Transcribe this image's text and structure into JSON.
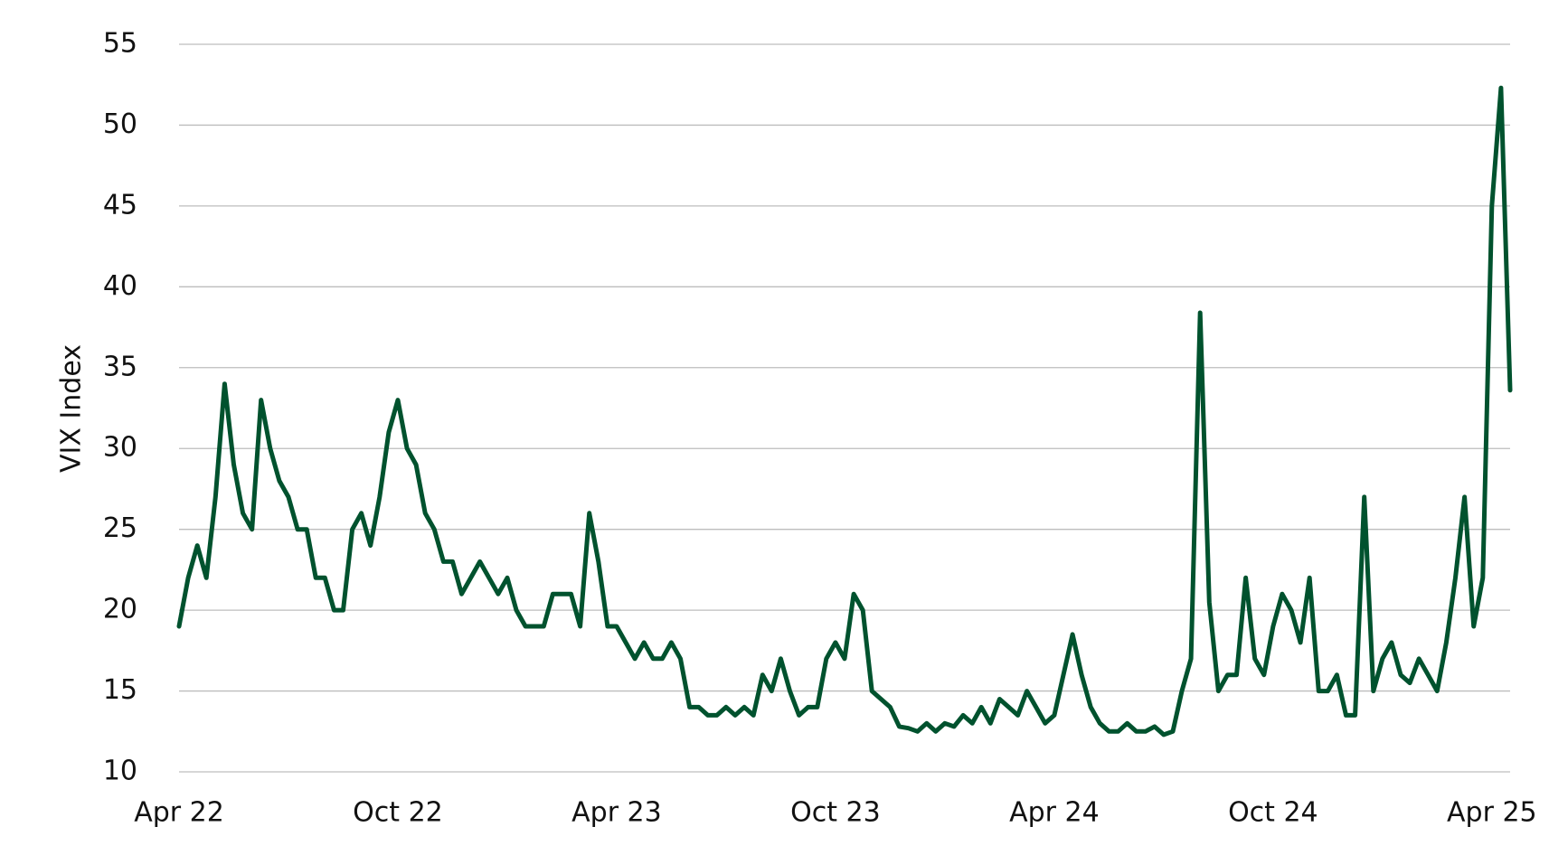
{
  "chart_data": {
    "type": "line",
    "y_label": "VIX Index",
    "categories": [
      "Apr 22",
      null,
      null,
      null,
      null,
      null,
      null,
      null,
      null,
      null,
      null,
      null,
      null,
      null,
      null,
      null,
      null,
      null,
      null,
      null,
      null,
      null,
      null,
      null,
      "Oct 22",
      null,
      null,
      null,
      null,
      null,
      null,
      null,
      null,
      null,
      null,
      null,
      null,
      null,
      null,
      null,
      null,
      null,
      null,
      null,
      null,
      null,
      null,
      null,
      "Apr 23",
      null,
      null,
      null,
      null,
      null,
      null,
      null,
      null,
      null,
      null,
      null,
      null,
      null,
      null,
      null,
      null,
      null,
      null,
      null,
      null,
      null,
      null,
      null,
      "Oct 23",
      null,
      null,
      null,
      null,
      null,
      null,
      null,
      null,
      null,
      null,
      null,
      null,
      null,
      null,
      null,
      null,
      null,
      null,
      null,
      null,
      null,
      null,
      null,
      "Apr 24",
      null,
      null,
      null,
      null,
      null,
      null,
      null,
      null,
      null,
      null,
      null,
      null,
      null,
      null,
      null,
      null,
      null,
      null,
      null,
      null,
      null,
      null,
      null,
      "Oct 24",
      null,
      null,
      null,
      null,
      null,
      null,
      null,
      null,
      null,
      null,
      null,
      null,
      null,
      null,
      null,
      null,
      null,
      null,
      null,
      null,
      null,
      null,
      null,
      "Apr 25",
      null,
      null
    ],
    "series": [
      {
        "name": "VIX Index",
        "color": "#00522e",
        "values": [
          19,
          22,
          24,
          22,
          27,
          34,
          29,
          26,
          25,
          33,
          30,
          28,
          27,
          25,
          25,
          22,
          22,
          20,
          20,
          25,
          26,
          24,
          27,
          31,
          33,
          30,
          29,
          26,
          25,
          23,
          23,
          21,
          22,
          23,
          22,
          21,
          22,
          20,
          19,
          19,
          19,
          21,
          21,
          21,
          19,
          26,
          23,
          19,
          19,
          18,
          17,
          18,
          17,
          17,
          18,
          17,
          14,
          14,
          13.5,
          13.5,
          14,
          13.5,
          14,
          13.5,
          16,
          15,
          17,
          15,
          13.5,
          14,
          14,
          17,
          18,
          17,
          21,
          20,
          15,
          14.5,
          14,
          12.8,
          12.7,
          12.5,
          13,
          12.5,
          13,
          12.8,
          13.5,
          13,
          14,
          13,
          14.5,
          14,
          13.5,
          15,
          14,
          13,
          13.5,
          16,
          18.5,
          16,
          14,
          13,
          12.5,
          12.5,
          13,
          12.5,
          12.5,
          12.8,
          12.3,
          12.5,
          15,
          17,
          38.4,
          20.5,
          15,
          16,
          16,
          22,
          17,
          16,
          19,
          21,
          20,
          18,
          22,
          15,
          15,
          16,
          13.5,
          13.5,
          27,
          15,
          17,
          18,
          16,
          15.5,
          17,
          16,
          15,
          18,
          22,
          27,
          19,
          22,
          45,
          52.3,
          33.6
        ]
      }
    ],
    "ylim": [
      10,
      55
    ],
    "yticks": [
      10,
      15,
      20,
      25,
      30,
      35,
      40,
      45,
      50,
      55
    ],
    "grid": true
  }
}
